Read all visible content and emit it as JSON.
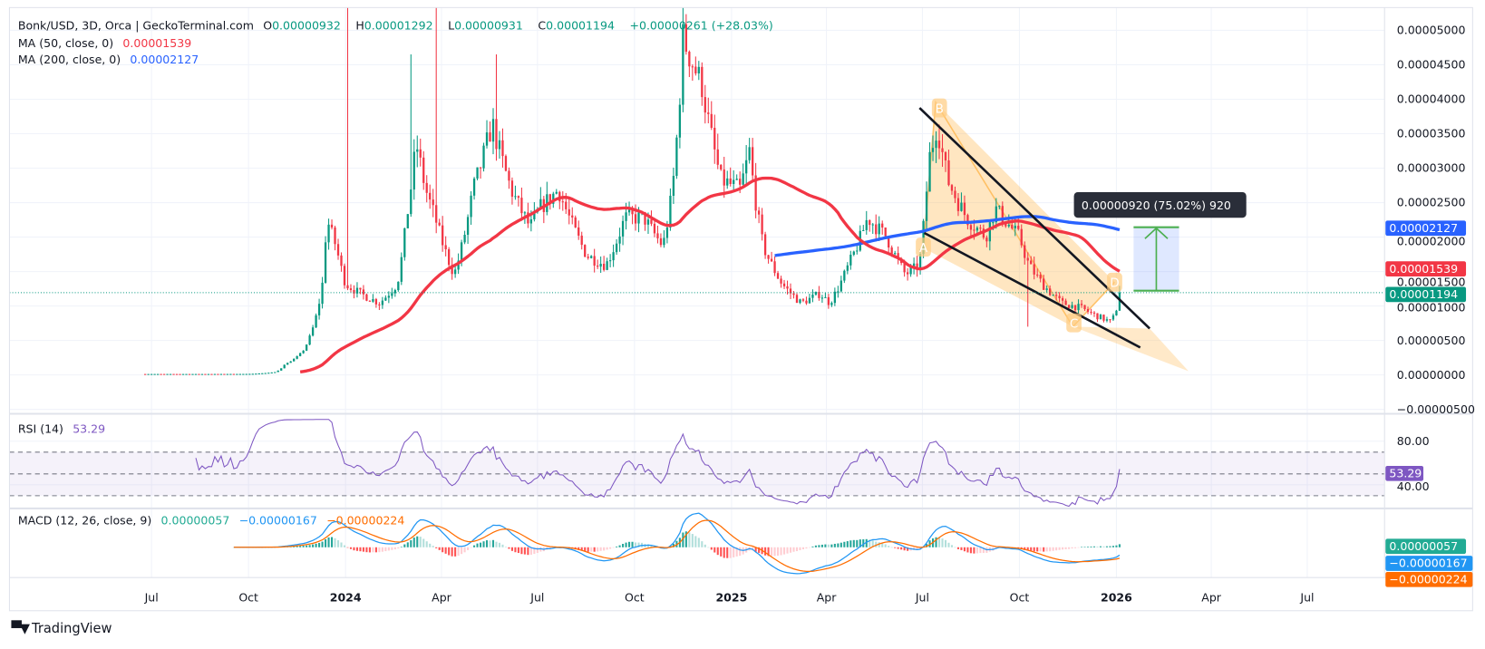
{
  "header": {
    "symbol": "Bonk/USD, 3D, Orca | GeckoTerminal.com",
    "o_label": "O",
    "o": "0.00000932",
    "h_label": "H",
    "h": "0.00001292",
    "l_label": "L",
    "l": "0.00000931",
    "c_label": "C",
    "c": "0.00001194",
    "change": "+0.00000261 (+28.03%)"
  },
  "ma50": {
    "label": "MA (50, close, 0)",
    "value": "0.00001539",
    "color": "#f23645"
  },
  "ma200": {
    "label": "MA (200, close, 0)",
    "value": "0.00002127",
    "color": "#2962ff"
  },
  "last_price_tag": {
    "value": "0.00001194",
    "color": "#089981"
  },
  "rsi": {
    "label": "RSI (14)",
    "value": "53.29",
    "color": "#7e57c2",
    "axis_labels": [
      "80.00",
      "40.00"
    ]
  },
  "macd": {
    "label": "MACD (12, 26, close, 9)",
    "histogram": "0.00000057",
    "macd": "−0.00000167",
    "signal": "−0.00000224",
    "colors": {
      "histogram": "#22ab94",
      "macd": "#2196f3",
      "signal": "#ff6d00"
    }
  },
  "price_axis": [
    "0.00005000",
    "0.00004500",
    "0.00004000",
    "0.00003500",
    "0.00003000",
    "0.00002500",
    "0.00002000",
    "0.00001500",
    "0.00001000",
    "0.00000500",
    "0.00000000",
    "−0.00000500"
  ],
  "time_axis": [
    {
      "label": "Jul",
      "date": "2023-07-01"
    },
    {
      "label": "Oct",
      "date": "2023-10-01"
    },
    {
      "label": "2024",
      "date": "2024-01-01",
      "bold": true
    },
    {
      "label": "Apr",
      "date": "2024-04-01"
    },
    {
      "label": "Jul",
      "date": "2024-07-01"
    },
    {
      "label": "Oct",
      "date": "2024-10-01"
    },
    {
      "label": "2025",
      "date": "2025-01-01",
      "bold": true
    },
    {
      "label": "Apr",
      "date": "2025-04-01"
    },
    {
      "label": "Jul",
      "date": "2025-07-01"
    },
    {
      "label": "Oct",
      "date": "2025-10-01"
    },
    {
      "label": "2026",
      "date": "2026-01-01",
      "bold": true
    },
    {
      "label": "Apr",
      "date": "2026-04-01"
    },
    {
      "label": "Jul",
      "date": "2026-07-01"
    }
  ],
  "pattern_labels": [
    "A",
    "B",
    "C",
    "D"
  ],
  "measure": {
    "text": "0.00000920 (75.02%) 920"
  },
  "branding": "TradingView",
  "chart_data": {
    "type": "candlestick",
    "interval": "3D",
    "xlim": [
      "2023-06-24",
      "2026-10-15"
    ],
    "ylim": [
      -5e-06,
      5.1e-05
    ],
    "grid": true,
    "colors": {
      "up": "#089981",
      "down": "#f23645"
    },
    "close_keypoints": [
      [
        "2023-06-24",
        1.4e-07
      ],
      [
        "2023-08-15",
        1.4e-07
      ],
      [
        "2023-10-01",
        1.5e-07
      ],
      [
        "2023-10-26",
        4.1e-07
      ],
      [
        "2023-11-04",
        1.51e-06
      ],
      [
        "2023-11-22",
        3.57e-06
      ],
      [
        "2023-12-05",
        9.07e-06
      ],
      [
        "2023-12-10",
        1.319e-05
      ],
      [
        "2023-12-14",
        2.28e-05
      ],
      [
        "2023-12-23",
        1.868e-05
      ],
      [
        "2024-01-01",
        1.319e-05
      ],
      [
        "2024-01-15",
        1.181e-05
      ],
      [
        "2024-02-02",
        1.044e-05
      ],
      [
        "2024-02-19",
        1.319e-05
      ],
      [
        "2024-02-28",
        2.28e-05
      ],
      [
        "2024-03-08",
        3.379e-05
      ],
      [
        "2024-03-17",
        2.692e-05
      ],
      [
        "2024-03-26",
        2.28e-05
      ],
      [
        "2024-04-13",
        1.456e-05
      ],
      [
        "2024-05-01",
        2.692e-05
      ],
      [
        "2024-05-19",
        3.654e-05
      ],
      [
        "2024-06-06",
        2.692e-05
      ],
      [
        "2024-06-24",
        2.143e-05
      ],
      [
        "2024-07-03",
        2.418e-05
      ],
      [
        "2024-07-21",
        2.692e-05
      ],
      [
        "2024-08-17",
        1.731e-05
      ],
      [
        "2024-09-04",
        1.593e-05
      ],
      [
        "2024-09-22",
        2.28e-05
      ],
      [
        "2024-10-10",
        2.28e-05
      ],
      [
        "2024-10-28",
        1.868e-05
      ],
      [
        "2024-11-06",
        2.692e-05
      ],
      [
        "2024-11-16",
        4.89e-05
      ],
      [
        "2024-12-04",
        4.203e-05
      ],
      [
        "2024-12-22",
        2.83e-05
      ],
      [
        "2025-01-09",
        2.692e-05
      ],
      [
        "2025-01-18",
        3.242e-05
      ],
      [
        "2025-01-31",
        1.868e-05
      ],
      [
        "2025-02-18",
        1.319e-05
      ],
      [
        "2025-03-08",
        1.044e-05
      ],
      [
        "2025-03-26",
        1.181e-05
      ],
      [
        "2025-04-04",
        1.044e-05
      ],
      [
        "2025-04-22",
        1.593e-05
      ],
      [
        "2025-05-10",
        2.28e-05
      ],
      [
        "2025-05-28",
        2.005e-05
      ],
      [
        "2025-06-15",
        1.456e-05
      ],
      [
        "2025-06-28",
        1.593e-05
      ],
      [
        "2025-07-07",
        3.104e-05
      ],
      [
        "2025-07-15",
        3.654e-05
      ],
      [
        "2025-07-25",
        2.83e-05
      ],
      [
        "2025-08-12",
        2.28e-05
      ],
      [
        "2025-08-30",
        2.005e-05
      ],
      [
        "2025-09-08",
        2.418e-05
      ],
      [
        "2025-10-01",
        2.005e-05
      ],
      [
        "2025-10-10",
        1.593e-05
      ],
      [
        "2025-10-23",
        1.319e-05
      ],
      [
        "2025-11-10",
        1.044e-05
      ],
      [
        "2025-11-28",
        9.75e-06
      ],
      [
        "2025-12-16",
        8.38e-06
      ],
      [
        "2025-12-27",
        7.69e-06
      ],
      [
        "2026-01-01",
        9.32e-06
      ]
    ],
    "last_bar": {
      "date": "2026-01-04",
      "open": 9.32e-06,
      "high": 1.292e-05,
      "low": 9.31e-06,
      "close": 1.194e-05
    },
    "wick_extremes": [
      {
        "date": "2024-01-03",
        "high": 5.33e-05
      },
      {
        "date": "2024-03-04",
        "high": 4.65e-05
      },
      {
        "date": "2024-03-26",
        "high": 5.33e-05
      },
      {
        "date": "2024-05-24",
        "high": 4.65e-05
      },
      {
        "date": "2024-11-16",
        "high": 5.33e-05
      },
      {
        "date": "2025-10-10",
        "low": 7e-06
      }
    ],
    "indicators": {
      "ma_periods": [
        50,
        200
      ],
      "rsi_period": 14,
      "rsi_levels": [
        70,
        50,
        30
      ],
      "macd": [
        12,
        26,
        9
      ]
    }
  }
}
